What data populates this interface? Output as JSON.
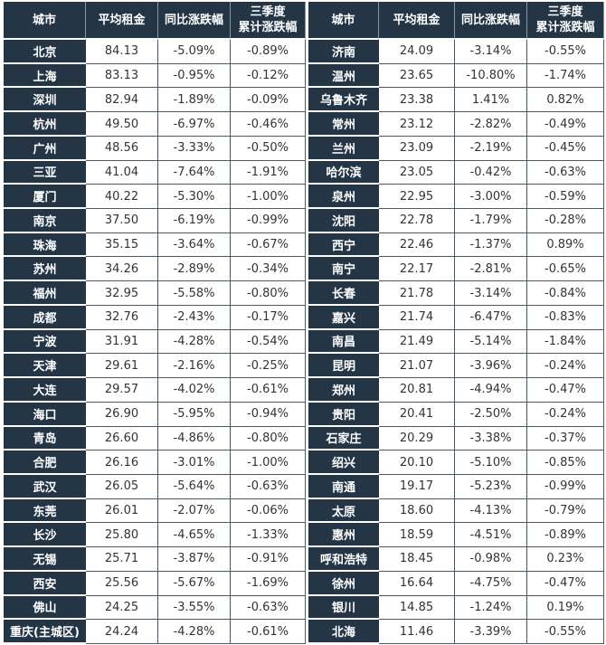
{
  "headers": [
    "城市",
    "平均租金",
    "同比涨跌幅",
    "三季度",
    "累计涨跌幅"
  ],
  "left_rows": [
    [
      "北京",
      "84.13",
      "-5.09%",
      "-0.89%"
    ],
    [
      "上海",
      "83.13",
      "-0.95%",
      "-0.12%"
    ],
    [
      "深圳",
      "82.94",
      "-1.89%",
      "-0.09%"
    ],
    [
      "杭州",
      "49.50",
      "-6.97%",
      "-0.46%"
    ],
    [
      "广州",
      "48.56",
      "-3.33%",
      "-0.50%"
    ],
    [
      "三亚",
      "41.04",
      "-7.64%",
      "-1.91%"
    ],
    [
      "厦门",
      "40.22",
      "-5.30%",
      "-1.00%"
    ],
    [
      "南京",
      "37.50",
      "-6.19%",
      "-0.99%"
    ],
    [
      "珠海",
      "35.15",
      "-3.64%",
      "-0.67%"
    ],
    [
      "苏州",
      "34.26",
      "-2.89%",
      "-0.34%"
    ],
    [
      "福州",
      "32.95",
      "-5.58%",
      "-0.80%"
    ],
    [
      "成都",
      "32.76",
      "-2.43%",
      "-0.17%"
    ],
    [
      "宁波",
      "31.91",
      "-4.28%",
      "-0.54%"
    ],
    [
      "天津",
      "29.61",
      "-2.16%",
      "-0.25%"
    ],
    [
      "大连",
      "29.57",
      "-4.02%",
      "-0.61%"
    ],
    [
      "海口",
      "26.90",
      "-5.95%",
      "-0.94%"
    ],
    [
      "青岛",
      "26.60",
      "-4.86%",
      "-0.80%"
    ],
    [
      "合肥",
      "26.16",
      "-3.01%",
      "-1.00%"
    ],
    [
      "武汉",
      "26.05",
      "-5.64%",
      "-0.63%"
    ],
    [
      "东莞",
      "26.01",
      "-2.07%",
      "-0.06%"
    ],
    [
      "长沙",
      "25.80",
      "-4.65%",
      "-1.33%"
    ],
    [
      "无锡",
      "25.71",
      "-3.87%",
      "-0.91%"
    ],
    [
      "西安",
      "25.56",
      "-5.67%",
      "-1.69%"
    ],
    [
      "佛山",
      "24.25",
      "-3.55%",
      "-0.63%"
    ],
    [
      "重庆(主城区)",
      "24.24",
      "-4.28%",
      "-0.61%"
    ]
  ],
  "right_rows": [
    [
      "济南",
      "24.09",
      "-3.14%",
      "-0.55%"
    ],
    [
      "温州",
      "23.65",
      "-10.80%",
      "-1.74%"
    ],
    [
      "乌鲁木齐",
      "23.38",
      "1.41%",
      "0.82%"
    ],
    [
      "常州",
      "23.12",
      "-2.82%",
      "-0.49%"
    ],
    [
      "兰州",
      "23.09",
      "-2.19%",
      "-0.45%"
    ],
    [
      "哈尔滨",
      "23.05",
      "-0.42%",
      "-0.63%"
    ],
    [
      "泉州",
      "22.95",
      "-3.00%",
      "-0.59%"
    ],
    [
      "沈阳",
      "22.78",
      "-1.79%",
      "-0.28%"
    ],
    [
      "西宁",
      "22.46",
      "-1.37%",
      "0.89%"
    ],
    [
      "南宁",
      "22.17",
      "-2.81%",
      "-0.65%"
    ],
    [
      "长春",
      "21.78",
      "-3.14%",
      "-0.84%"
    ],
    [
      "嘉兴",
      "21.74",
      "-6.47%",
      "-0.83%"
    ],
    [
      "南昌",
      "21.49",
      "-5.14%",
      "-1.84%"
    ],
    [
      "昆明",
      "21.07",
      "-3.96%",
      "-0.24%"
    ],
    [
      "郑州",
      "20.81",
      "-4.94%",
      "-0.47%"
    ],
    [
      "贵阳",
      "20.41",
      "-2.50%",
      "-0.24%"
    ],
    [
      "石家庄",
      "20.29",
      "-3.38%",
      "-0.37%"
    ],
    [
      "绍兴",
      "20.10",
      "-5.10%",
      "-0.85%"
    ],
    [
      "南通",
      "19.17",
      "-5.23%",
      "-0.99%"
    ],
    [
      "太原",
      "18.60",
      "-4.13%",
      "-0.79%"
    ],
    [
      "惠州",
      "18.59",
      "-4.51%",
      "-0.89%"
    ],
    [
      "呼和浩特",
      "18.45",
      "-0.98%",
      "0.23%"
    ],
    [
      "徐州",
      "16.64",
      "-4.75%",
      "-0.47%"
    ],
    [
      "银川",
      "14.85",
      "-1.24%",
      "0.19%"
    ],
    [
      "北海",
      "11.46",
      "-3.39%",
      "-0.55%"
    ]
  ],
  "colors": {
    "header_bg": "#243646",
    "header_text": "#ffffff",
    "cell_text": "#333333"
  }
}
